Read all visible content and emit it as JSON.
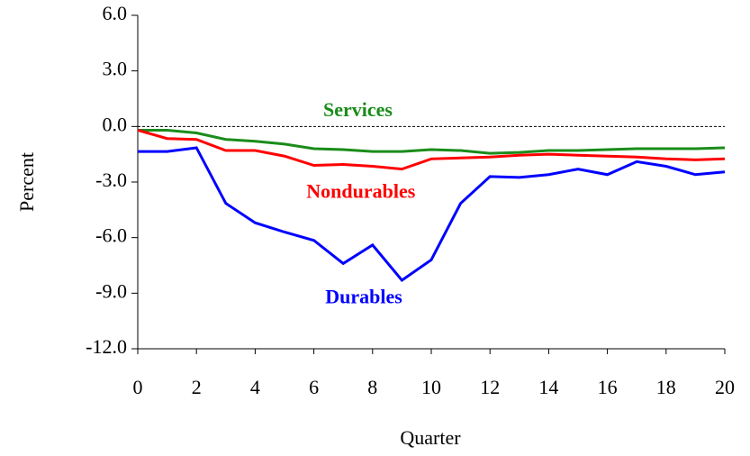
{
  "chart_data": {
    "type": "line",
    "x": [
      0,
      1,
      2,
      3,
      4,
      5,
      6,
      7,
      8,
      9,
      10,
      11,
      12,
      13,
      14,
      15,
      16,
      17,
      18,
      19,
      20
    ],
    "series": [
      {
        "name": "Services",
        "color": "#1a8c1a",
        "values": [
          -0.2,
          -0.2,
          -0.35,
          -0.7,
          -0.8,
          -0.95,
          -1.2,
          -1.25,
          -1.35,
          -1.35,
          -1.25,
          -1.3,
          -1.45,
          -1.4,
          -1.3,
          -1.3,
          -1.25,
          -1.2,
          -1.2,
          -1.2,
          -1.15
        ]
      },
      {
        "name": "Nondurables",
        "color": "#ff0000",
        "values": [
          -0.2,
          -0.65,
          -0.7,
          -1.3,
          -1.3,
          -1.6,
          -2.1,
          -2.05,
          -2.15,
          -2.3,
          -1.75,
          -1.7,
          -1.65,
          -1.55,
          -1.5,
          -1.55,
          -1.6,
          -1.65,
          -1.75,
          -1.8,
          -1.75
        ]
      },
      {
        "name": "Durables",
        "color": "#0000ff",
        "values": [
          -1.35,
          -1.35,
          -1.15,
          -4.15,
          -5.2,
          -5.7,
          -6.15,
          -7.4,
          -6.4,
          -8.3,
          -7.2,
          -4.15,
          -2.7,
          -2.75,
          -2.6,
          -2.3,
          -2.6,
          -1.9,
          -2.15,
          -2.6,
          -2.45
        ]
      }
    ],
    "xlabel": "Quarter",
    "ylabel": "Percent",
    "xlim": [
      0,
      20
    ],
    "xticks": [
      0,
      2,
      4,
      6,
      8,
      10,
      12,
      14,
      16,
      18,
      20
    ],
    "ylim": [
      -12,
      6
    ],
    "yticks": [
      {
        "value": -12,
        "label": "-12.0"
      },
      {
        "value": -9,
        "label": "-9.0"
      },
      {
        "value": -6,
        "label": "-6.0"
      },
      {
        "value": -3,
        "label": "-3.0"
      },
      {
        "value": 0,
        "label": "0.0"
      },
      {
        "value": 3,
        "label": "3.0"
      },
      {
        "value": 6,
        "label": "6.0"
      }
    ],
    "zero_line": true
  }
}
